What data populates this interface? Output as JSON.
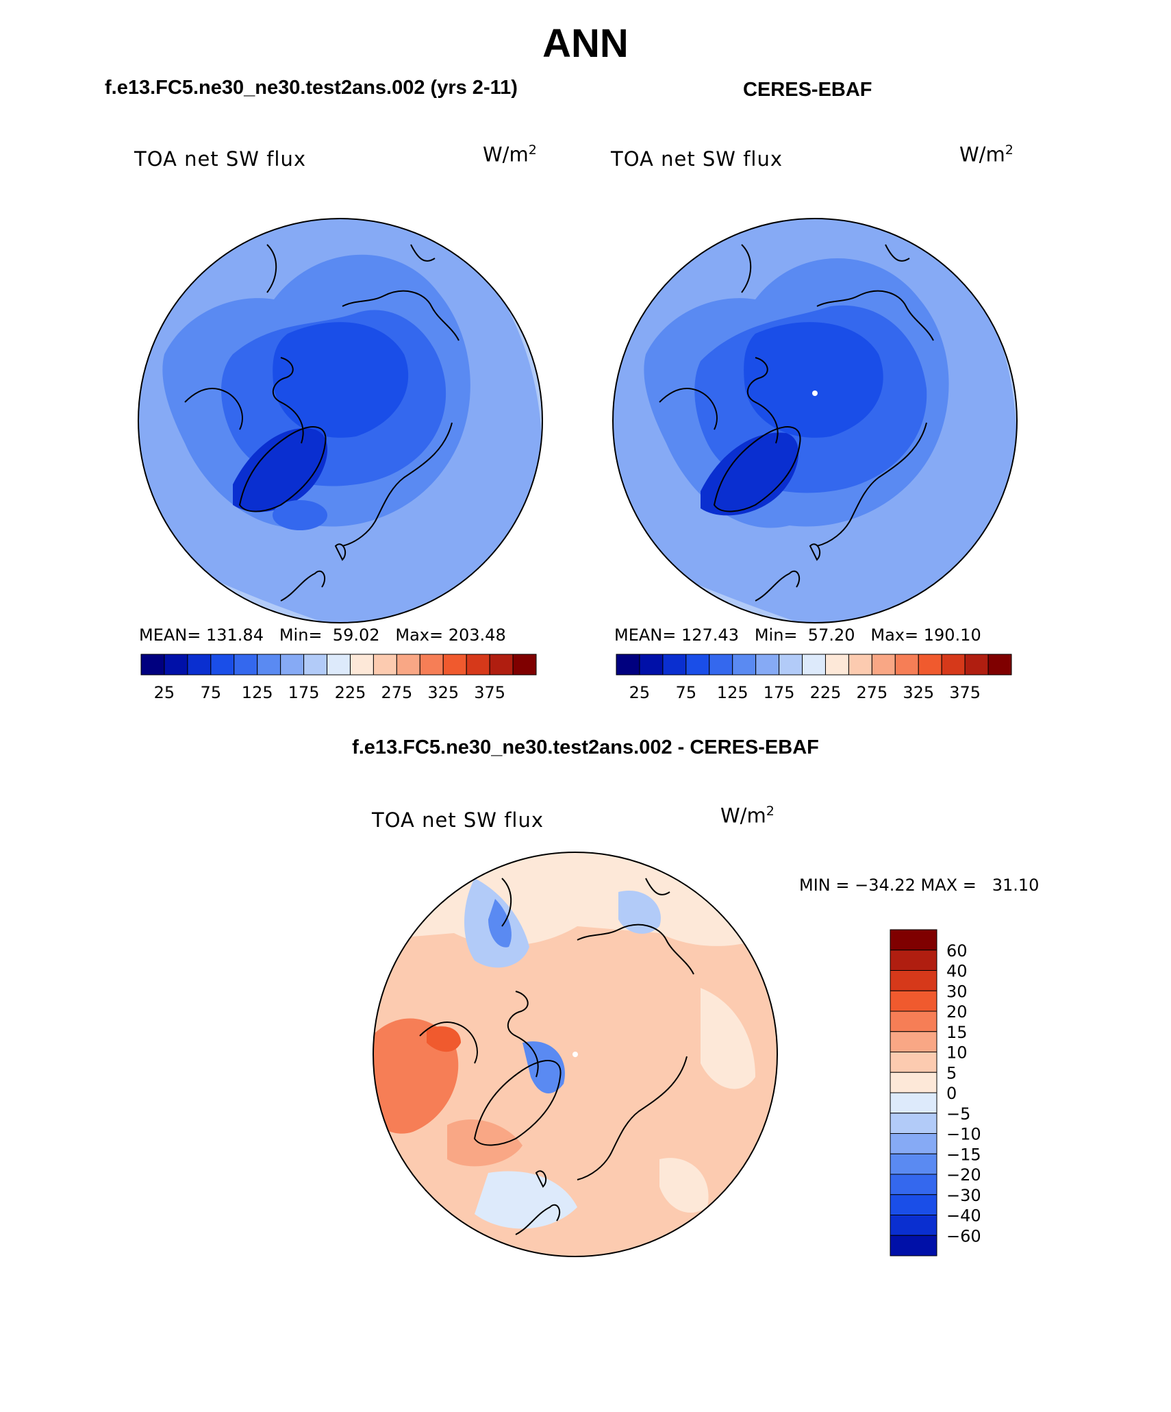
{
  "figure": {
    "title": "ANN",
    "diff_title": "f.e13.FC5.ne30_ne30.test2ans.002 - CERES-EBAF"
  },
  "panels": [
    {
      "title": "f.e13.FC5.ne30_ne30.test2ans.002 (yrs 2-11)",
      "variable": "TOA net SW flux",
      "units": "W/m",
      "units_exp": "2",
      "stats": "MEAN= 131.84   Min=  59.02   Max= 203.48"
    },
    {
      "title": "CERES-EBAF",
      "variable": "TOA net SW flux",
      "units": "W/m",
      "units_exp": "2",
      "stats": "MEAN= 127.43   Min=  57.20   Max= 190.10"
    },
    {
      "variable": "TOA net SW flux",
      "units": "W/m",
      "units_exp": "2",
      "stats": "MIN = −34.22 MAX =   31.10"
    }
  ],
  "colorbar_abs": {
    "colors": [
      "#00007f",
      "#0010a8",
      "#0a2fd0",
      "#1a4ee8",
      "#3468ee",
      "#5a8af2",
      "#86aaf5",
      "#b2cbf8",
      "#ddeafb",
      "#fde8d8",
      "#fccbb0",
      "#f9a785",
      "#f67e56",
      "#f05a2e",
      "#d6391a",
      "#b01e10",
      "#7f0000"
    ],
    "tick_labels": [
      "25",
      "75",
      "125",
      "175",
      "225",
      "275",
      "325",
      "375"
    ]
  },
  "colorbar_diff": {
    "colors_top_to_bottom": [
      "#7f0000",
      "#b01e10",
      "#d6391a",
      "#f05a2e",
      "#f67e56",
      "#f9a785",
      "#fccbb0",
      "#fde8d8",
      "#ddeafb",
      "#b2cbf8",
      "#86aaf5",
      "#5a8af2",
      "#3468ee",
      "#1a4ee8",
      "#0a2fd0",
      "#0010a8"
    ],
    "tick_labels": [
      "60",
      "40",
      "30",
      "20",
      "15",
      "10",
      "5",
      "0",
      "−5",
      "−10",
      "−15",
      "−20",
      "−30",
      "−40",
      "−60"
    ]
  },
  "chart_data": [
    {
      "type": "heatmap",
      "title": "f.e13.FC5.ne30_ne30.test2ans.002 (yrs 2-11)",
      "variable": "TOA net SW flux",
      "units": "W/m^2",
      "projection": "north polar stereographic",
      "mean": 131.84,
      "min": 59.02,
      "max": 203.48,
      "colorbar_levels": [
        25,
        75,
        125,
        175,
        225,
        275,
        325,
        375
      ]
    },
    {
      "type": "heatmap",
      "title": "CERES-EBAF",
      "variable": "TOA net SW flux",
      "units": "W/m^2",
      "projection": "north polar stereographic",
      "mean": 127.43,
      "min": 57.2,
      "max": 190.1,
      "colorbar_levels": [
        25,
        75,
        125,
        175,
        225,
        275,
        325,
        375
      ]
    },
    {
      "type": "heatmap",
      "title": "f.e13.FC5.ne30_ne30.test2ans.002 - CERES-EBAF",
      "variable": "TOA net SW flux",
      "units": "W/m^2",
      "projection": "north polar stereographic",
      "min": -34.22,
      "max": 31.1,
      "colorbar_levels": [
        60,
        40,
        30,
        20,
        15,
        10,
        5,
        0,
        -5,
        -10,
        -15,
        -20,
        -30,
        -40,
        -60
      ]
    }
  ]
}
